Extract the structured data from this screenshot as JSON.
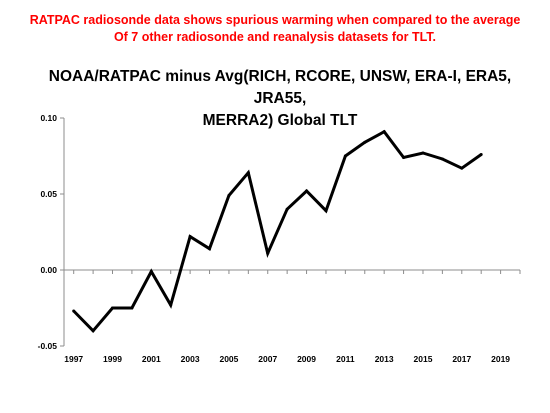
{
  "headline": {
    "line1": "RATPAC radiosonde data shows spurious warming when compared to the average",
    "line2": "Of 7 other radiosonde and reanalysis datasets for TLT."
  },
  "chart_data": {
    "type": "line",
    "title_line1": "NOAA/RATPAC minus Avg(RICH, RCORE, UNSW, ERA-I, ERA5, JRA55,",
    "title_line2": "MERRA2) Global TLT",
    "xlabel": "",
    "ylabel": "",
    "xlim": [
      1996.5,
      2020
    ],
    "ylim": [
      -0.05,
      0.1
    ],
    "x_ticks": [
      1997,
      1999,
      2001,
      2003,
      2005,
      2007,
      2009,
      2011,
      2013,
      2015,
      2017,
      2019
    ],
    "y_ticks": [
      -0.05,
      0.0,
      0.05,
      0.1
    ],
    "y_tick_labels": [
      "-0.05",
      "0.00",
      "0.05",
      "0.10"
    ],
    "grid": false,
    "series": [
      {
        "color": "#000000",
        "x": [
          1997,
          1998,
          1999,
          2000,
          2001,
          2002,
          2003,
          2004,
          2005,
          2006,
          2007,
          2008,
          2009,
          2010,
          2011,
          2012,
          2013,
          2014,
          2015,
          2016,
          2017,
          2018
        ],
        "y": [
          -0.027,
          -0.04,
          -0.025,
          -0.025,
          -0.001,
          -0.023,
          0.022,
          0.014,
          0.049,
          0.064,
          0.011,
          0.04,
          0.052,
          0.039,
          0.075,
          0.084,
          0.091,
          0.074,
          0.077,
          0.073,
          0.067,
          0.076
        ]
      }
    ]
  }
}
